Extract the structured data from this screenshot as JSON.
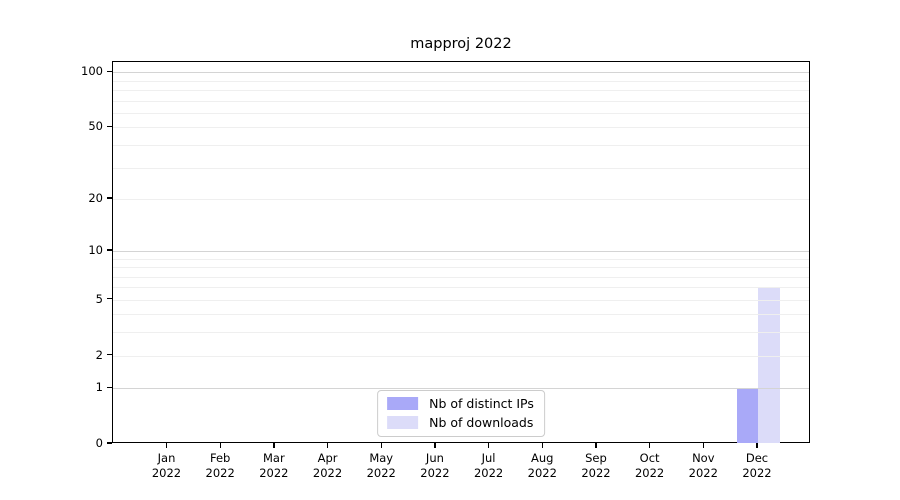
{
  "chart_data": {
    "type": "bar",
    "title": "mapproj 2022",
    "categories": [
      "Jan\n2022",
      "Feb\n2022",
      "Mar\n2022",
      "Apr\n2022",
      "May\n2022",
      "Jun\n2022",
      "Jul\n2022",
      "Aug\n2022",
      "Sep\n2022",
      "Oct\n2022",
      "Nov\n2022",
      "Dec\n2022"
    ],
    "series": [
      {
        "name": "Nb of distinct IPs",
        "color": "#a9a9f8",
        "values": [
          0,
          0,
          0,
          0,
          0,
          0,
          0,
          0,
          0,
          0,
          0,
          1
        ]
      },
      {
        "name": "Nb of downloads",
        "color": "#dcdcf9",
        "values": [
          0,
          0,
          0,
          0,
          0,
          0,
          0,
          0,
          0,
          0,
          0,
          6
        ]
      }
    ],
    "xlabel": "",
    "ylabel": "",
    "yscale": "log1p",
    "yticks": [
      0,
      1,
      2,
      5,
      10,
      20,
      50,
      100
    ],
    "ylim": [
      0,
      114
    ],
    "grid": "horizontal-minor-and-major",
    "grid_minor_values": [
      2,
      3,
      4,
      5,
      6,
      7,
      8,
      9,
      20,
      30,
      40,
      50,
      60,
      70,
      80,
      90
    ],
    "grid_major_values": [
      1,
      10,
      100
    ],
    "legend_position": "lower center",
    "legend_labels": [
      "Nb of distinct IPs",
      "Nb of downloads"
    ],
    "colors": {
      "bar_distinct_ips": "#a9a9f8",
      "bar_downloads": "#dcdcf9",
      "grid_major": "#d4d4d4",
      "grid_minor": "#efefef",
      "axis": "#000000",
      "legend_border": "#cccccc"
    }
  }
}
